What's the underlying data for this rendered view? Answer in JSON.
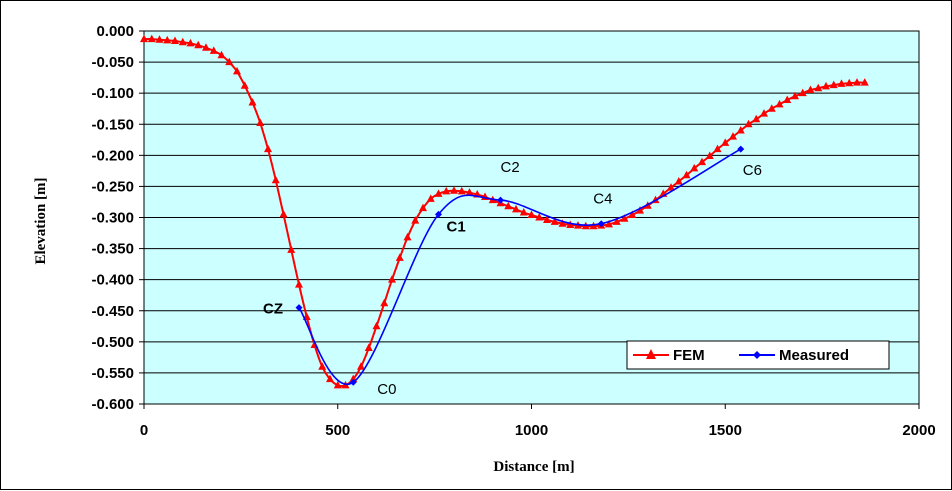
{
  "chart_data": {
    "type": "line",
    "title": "",
    "xlabel": "Distance [m]",
    "ylabel": "Elevation [m]",
    "xlim": [
      0,
      2000
    ],
    "ylim": [
      -0.6,
      0.0
    ],
    "x_ticks": [
      0,
      500,
      1000,
      1500,
      2000
    ],
    "x_tick_labels": [
      "0",
      "500",
      "1000",
      "1500",
      "2000"
    ],
    "y_ticks": [
      0.0,
      -0.05,
      -0.1,
      -0.15,
      -0.2,
      -0.25,
      -0.3,
      -0.35,
      -0.4,
      -0.45,
      -0.5,
      -0.55,
      -0.6
    ],
    "y_tick_labels": [
      "0.000",
      "-0.050",
      "-0.100",
      "-0.150",
      "-0.200",
      "-0.250",
      "-0.300",
      "-0.350",
      "-0.400",
      "-0.450",
      "-0.500",
      "-0.550",
      "-0.600"
    ],
    "grid": "horizontal",
    "plot_background": "#ccffff",
    "legend_position": "bottom-right",
    "series": [
      {
        "name": "FEM",
        "color": "#ff0000",
        "marker": "triangle",
        "x": [
          0,
          20,
          40,
          60,
          80,
          100,
          120,
          140,
          160,
          180,
          200,
          220,
          240,
          260,
          280,
          300,
          320,
          340,
          360,
          380,
          400,
          420,
          440,
          460,
          480,
          500,
          520,
          540,
          560,
          580,
          600,
          620,
          640,
          660,
          680,
          700,
          720,
          740,
          760,
          780,
          800,
          820,
          840,
          860,
          880,
          900,
          920,
          940,
          960,
          980,
          1000,
          1020,
          1040,
          1060,
          1080,
          1100,
          1120,
          1140,
          1160,
          1180,
          1200,
          1220,
          1240,
          1260,
          1280,
          1300,
          1320,
          1340,
          1360,
          1380,
          1400,
          1420,
          1440,
          1460,
          1480,
          1500,
          1520,
          1540,
          1560,
          1580,
          1600,
          1620,
          1640,
          1660,
          1680,
          1700,
          1720,
          1740,
          1760,
          1780,
          1800,
          1820,
          1840,
          1860
        ],
        "y": [
          -0.013,
          -0.013,
          -0.014,
          -0.015,
          -0.016,
          -0.018,
          -0.02,
          -0.023,
          -0.027,
          -0.032,
          -0.039,
          -0.05,
          -0.065,
          -0.088,
          -0.115,
          -0.148,
          -0.19,
          -0.24,
          -0.295,
          -0.352,
          -0.408,
          -0.46,
          -0.505,
          -0.54,
          -0.56,
          -0.57,
          -0.57,
          -0.56,
          -0.54,
          -0.51,
          -0.475,
          -0.438,
          -0.4,
          -0.365,
          -0.332,
          -0.305,
          -0.285,
          -0.27,
          -0.262,
          -0.258,
          -0.257,
          -0.258,
          -0.26,
          -0.263,
          -0.267,
          -0.272,
          -0.277,
          -0.282,
          -0.287,
          -0.292,
          -0.296,
          -0.3,
          -0.304,
          -0.307,
          -0.31,
          -0.312,
          -0.313,
          -0.314,
          -0.314,
          -0.313,
          -0.311,
          -0.307,
          -0.302,
          -0.296,
          -0.289,
          -0.281,
          -0.272,
          -0.262,
          -0.252,
          -0.242,
          -0.232,
          -0.221,
          -0.211,
          -0.201,
          -0.19,
          -0.18,
          -0.17,
          -0.16,
          -0.15,
          -0.142,
          -0.133,
          -0.125,
          -0.118,
          -0.111,
          -0.105,
          -0.1,
          -0.095,
          -0.092,
          -0.089,
          -0.087,
          -0.085,
          -0.084,
          -0.083,
          -0.083
        ]
      },
      {
        "name": "Measured",
        "color": "#0000ff",
        "marker": "diamond",
        "x": [
          400,
          540,
          760,
          920,
          1180,
          1540
        ],
        "y": [
          -0.445,
          -0.565,
          -0.295,
          -0.272,
          -0.31,
          -0.19
        ]
      }
    ],
    "annotations": [
      {
        "text": "CZ",
        "x": 400,
        "y": -0.445,
        "bold": true
      },
      {
        "text": "C0",
        "x": 540,
        "y": -0.565,
        "bold": false
      },
      {
        "text": "C1",
        "x": 760,
        "y": -0.295,
        "bold": true
      },
      {
        "text": "C2",
        "x": 920,
        "y": -0.272,
        "bold": false
      },
      {
        "text": "C4",
        "x": 1180,
        "y": -0.31,
        "bold": false
      },
      {
        "text": "C6",
        "x": 1540,
        "y": -0.19,
        "bold": false
      }
    ]
  }
}
